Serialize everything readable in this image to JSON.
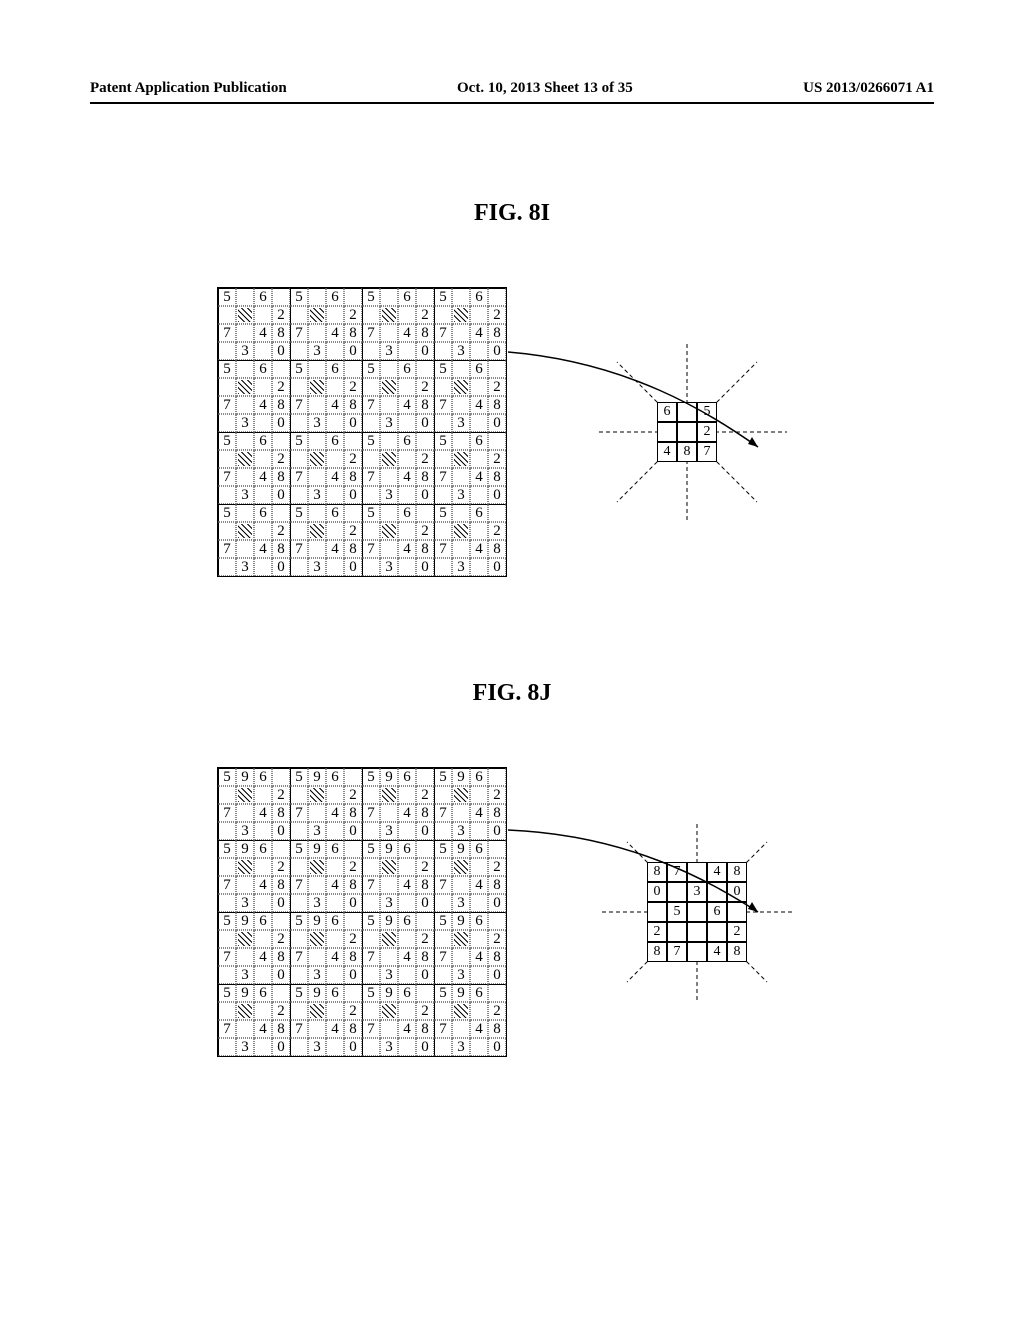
{
  "header": {
    "left": "Patent Application Publication",
    "mid": "Oct. 10, 2013  Sheet 13 of 35",
    "right": "US 2013/0266071 A1"
  },
  "figI": {
    "label": "FIG. 8I",
    "block4": [
      [
        "5",
        "",
        "6",
        "",
        "5",
        "",
        "6",
        "",
        "5",
        "",
        "6",
        "",
        "5",
        "",
        "6",
        ""
      ],
      [
        "",
        "H",
        "",
        "2",
        "",
        "H",
        "",
        "2",
        "",
        "H",
        "",
        "2",
        "",
        "H",
        "",
        "2"
      ],
      [
        "7",
        "",
        "4",
        "8",
        "7",
        "",
        "4",
        "8",
        "7",
        "",
        "4",
        "8",
        "7",
        "",
        "4",
        "8"
      ],
      [
        "",
        "3",
        "",
        "0",
        "",
        "3",
        "",
        "0",
        "",
        "3",
        "",
        "0",
        "",
        "3",
        "",
        "0"
      ]
    ],
    "small": {
      "type": "g33",
      "cells": [
        [
          "6",
          "",
          "5"
        ],
        [
          "",
          "H",
          "2"
        ],
        [
          "4",
          "8",
          "7"
        ]
      ],
      "corners": {
        "tl": "H",
        "tr": "H",
        "bl": "3",
        "br": "3"
      },
      "bottom": [
        "6",
        "",
        "5"
      ]
    }
  },
  "figJ": {
    "label": "FIG. 8J",
    "block4": [
      [
        "5",
        "9",
        "6",
        "",
        "5",
        "9",
        "6",
        "",
        "5",
        "9",
        "6",
        "",
        "5",
        "9",
        "6",
        ""
      ],
      [
        "",
        "H",
        "",
        "2",
        "",
        "H",
        "",
        "2",
        "",
        "H",
        "",
        "2",
        "",
        "H",
        "",
        "2"
      ],
      [
        "7",
        "",
        "4",
        "8",
        "7",
        "",
        "4",
        "8",
        "7",
        "",
        "4",
        "8",
        "7",
        "",
        "4",
        "8"
      ],
      [
        "",
        "3",
        "",
        "0",
        "",
        "3",
        "",
        "0",
        "",
        "3",
        "",
        "0",
        "",
        "3",
        "",
        "0"
      ]
    ],
    "small": {
      "type": "g44",
      "cells": [
        [
          "8",
          "7",
          "",
          "4",
          "8"
        ],
        [
          "0",
          "",
          "3",
          "",
          "0"
        ],
        [
          "",
          "5",
          "H",
          "6",
          ""
        ],
        [
          "2",
          "",
          "H",
          "",
          "2"
        ],
        [
          "8",
          "7",
          "",
          "4",
          "8"
        ]
      ]
    }
  }
}
